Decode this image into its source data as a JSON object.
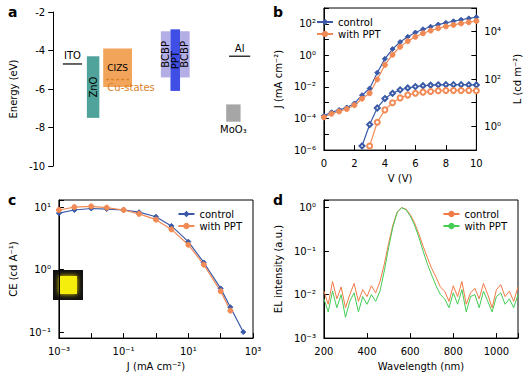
{
  "chart_data": [
    {
      "title": "a",
      "type": "levels",
      "ylabel": "Energy (eV)",
      "ylim": [
        -10,
        -2
      ],
      "yticks": [
        -10,
        -8,
        -6,
        -4,
        -2
      ],
      "tick_labels": "y",
      "grid": false,
      "series": [
        {
          "name": "ITO",
          "type": "line",
          "values": [
            -4.7
          ],
          "color": "#333333"
        },
        {
          "name": "ZnO",
          "type": "bar",
          "values": [
            -4.3,
            -7.5
          ],
          "color": "#4fa39a"
        },
        {
          "name": "CIZS",
          "type": "bar",
          "values": [
            -3.9,
            -5.9
          ],
          "color": "#f2a45a"
        },
        {
          "name": "BCBP",
          "type": "bar",
          "values": [
            -3,
            -5.4
          ],
          "color": "#b4aee6"
        },
        {
          "name": "PPT",
          "type": "bar",
          "values": [
            -2.9,
            -6.1
          ],
          "color": "#3f4fe6"
        },
        {
          "name": "BCBP",
          "type": "bar",
          "values": [
            -3,
            -5.4
          ],
          "color": "#b4aee6"
        },
        {
          "name": "MoO₃",
          "type": "bar",
          "values": [
            -6.8,
            -7.7
          ],
          "color": "#a6a6a6"
        },
        {
          "name": "Al",
          "type": "line",
          "values": [
            -4.3
          ],
          "color": "#333333"
        },
        {
          "name": "Cu-states",
          "type": "line",
          "line_style": "dashed",
          "values": [
            -5.5
          ],
          "color": "#d9822b"
        }
      ]
    },
    {
      "title": "b",
      "type": "line",
      "xlabel": "V (V)",
      "ylabel": "J (mA cm⁻²)",
      "y2label": "L (cd m⁻²)",
      "log": "y",
      "grid": false,
      "legend": "upper left",
      "xlim": [
        0,
        10
      ],
      "xticks": [
        0,
        2,
        4,
        6,
        8,
        10
      ],
      "ylim": [
        1e-06,
        1000
      ],
      "yticks": [
        {
          "value": 1e-06,
          "label": "10⁻⁶"
        },
        {
          "value": 0.0001,
          "label": "10⁻⁴"
        },
        {
          "value": 0.01,
          "label": "10⁻²"
        },
        {
          "value": 1,
          "label": "10⁰"
        },
        {
          "value": 100,
          "label": "10²"
        }
      ],
      "y2lim": [
        0.1,
        100000
      ],
      "y2ticks": [
        {
          "value": 1,
          "label": "10⁰"
        },
        {
          "value": 100,
          "label": "10²"
        },
        {
          "value": 10000,
          "label": "10⁴"
        }
      ],
      "x": [
        0,
        0.5,
        1,
        1.5,
        2,
        2.5,
        3,
        3.5,
        4,
        4.5,
        5,
        5.5,
        6,
        6.5,
        7,
        7.5,
        8,
        8.5,
        9,
        9.5,
        10
      ],
      "series": [
        {
          "name": "control",
          "color": "#3a5aa8",
          "marker": "diamond",
          "values": [
            0.00015,
            0.00025,
            0.00035,
            0.0005,
            0.0009,
            0.003,
            0.008,
            0.08,
            0.6,
            2.5,
            7,
            15,
            28,
            45,
            65,
            90,
            115,
            145,
            180,
            220,
            260
          ]
        },
        {
          "name": "with PPT",
          "color": "#f28a55",
          "marker": "circle",
          "values": [
            0.00012,
            0.0002,
            0.00028,
            0.0004,
            0.0007,
            0.0018,
            0.004,
            0.03,
            0.25,
            1.1,
            3.5,
            8,
            15,
            25,
            37,
            52,
            68,
            85,
            105,
            125,
            150
          ]
        },
        {
          "name": "control",
          "color": "#3a5aa8",
          "marker": "open_diamond",
          "axis": "y2",
          "values": [
            null,
            null,
            null,
            null,
            null,
            0.15,
            1.2,
            6,
            15,
            25,
            35,
            42,
            48,
            52,
            55,
            57,
            58,
            58,
            58,
            57,
            56
          ]
        },
        {
          "name": "with PPT",
          "color": "#f28a55",
          "marker": "open_circle",
          "axis": "y2",
          "values": [
            null,
            null,
            null,
            null,
            null,
            null,
            0.15,
            1.5,
            5,
            10,
            16,
            21,
            25,
            28,
            30,
            32,
            33,
            33,
            33,
            33,
            32
          ]
        }
      ]
    },
    {
      "title": "c",
      "type": "line",
      "xlabel": "J (mA cm⁻²)",
      "ylabel": "CE (cd A⁻¹)",
      "log": true,
      "grid": false,
      "legend": "upper right",
      "xlim": [
        0.001,
        1000
      ],
      "xticks": [
        {
          "value": 0.001,
          "label": "10⁻³"
        },
        {
          "value": 0.1,
          "label": "10⁻¹"
        },
        {
          "value": 10,
          "label": "10¹"
        },
        {
          "value": 1000,
          "label": "10³"
        }
      ],
      "ylim": [
        0.08,
        13
      ],
      "yticks": [
        {
          "value": 0.1,
          "label": "10⁻¹"
        },
        {
          "value": 1,
          "label": "10⁰"
        },
        {
          "value": 10,
          "label": "10¹"
        }
      ],
      "series": [
        {
          "name": "control",
          "color": "#3a5aa8",
          "marker": "diamond",
          "x": [
            0.001,
            0.003,
            0.01,
            0.03,
            0.1,
            0.3,
            1,
            3,
            10,
            30,
            100,
            200,
            500
          ],
          "values": [
            8,
            9,
            9.5,
            9.3,
            9,
            8.3,
            7,
            5,
            2.8,
            1.3,
            0.5,
            0.25,
            0.1
          ]
        },
        {
          "name": "with PPT",
          "color": "#f28a55",
          "marker": "circle",
          "x": [
            0.001,
            0.003,
            0.01,
            0.03,
            0.1,
            0.3,
            1,
            3,
            10,
            30,
            100,
            200
          ],
          "values": [
            9,
            10,
            10.3,
            9.8,
            9,
            7.8,
            6.3,
            4.4,
            2.5,
            1.2,
            0.45,
            0.22
          ]
        }
      ]
    },
    {
      "title": "d",
      "type": "line",
      "xlabel": "Wavelength (nm)",
      "ylabel": "EL intensity (a.u.)",
      "log": "y",
      "grid": false,
      "legend": "upper right",
      "xlim": [
        200,
        1100
      ],
      "xticks": [
        200,
        400,
        600,
        800,
        1000
      ],
      "ylim": [
        0.001,
        1.5
      ],
      "yticks": [
        {
          "value": 0.001,
          "label": "10⁻³"
        },
        {
          "value": 0.01,
          "label": "10⁻²"
        },
        {
          "value": 0.1,
          "label": "10⁻¹"
        },
        {
          "value": 1,
          "label": "10⁰"
        }
      ],
      "x": [
        200,
        220,
        240,
        260,
        280,
        300,
        320,
        340,
        360,
        380,
        400,
        420,
        440,
        460,
        480,
        500,
        520,
        540,
        560,
        580,
        600,
        620,
        640,
        660,
        680,
        700,
        720,
        740,
        760,
        780,
        800,
        820,
        840,
        860,
        880,
        900,
        920,
        940,
        960,
        980,
        1000,
        1020,
        1040,
        1060,
        1080,
        1100
      ],
      "series": [
        {
          "name": "control",
          "color": "#f27a45",
          "marker": "none",
          "values": [
            0.012,
            0.006,
            0.02,
            0.008,
            0.015,
            0.005,
            0.01,
            0.018,
            0.007,
            0.013,
            0.009,
            0.016,
            0.011,
            0.02,
            0.05,
            0.15,
            0.4,
            0.8,
            1.0,
            0.93,
            0.7,
            0.45,
            0.25,
            0.13,
            0.07,
            0.04,
            0.025,
            0.015,
            0.012,
            0.007,
            0.016,
            0.009,
            0.02,
            0.006,
            0.011,
            0.014,
            0.008,
            0.018,
            0.01,
            0.005,
            0.013,
            0.017,
            0.009,
            0.012,
            0.007,
            0.015
          ]
        },
        {
          "name": "with PPT",
          "color": "#44cc55",
          "marker": "none",
          "values": [
            0.008,
            0.004,
            0.012,
            0.005,
            0.01,
            0.003,
            0.007,
            0.011,
            0.004,
            0.009,
            0.006,
            0.01,
            0.007,
            0.012,
            0.035,
            0.12,
            0.36,
            0.78,
            1.0,
            0.9,
            0.65,
            0.4,
            0.21,
            0.1,
            0.05,
            0.028,
            0.016,
            0.01,
            0.008,
            0.005,
            0.011,
            0.006,
            0.013,
            0.004,
            0.009,
            0.01,
            0.005,
            0.012,
            0.007,
            0.004,
            0.009,
            0.011,
            0.006,
            0.008,
            0.005,
            0.01
          ]
        }
      ]
    }
  ]
}
